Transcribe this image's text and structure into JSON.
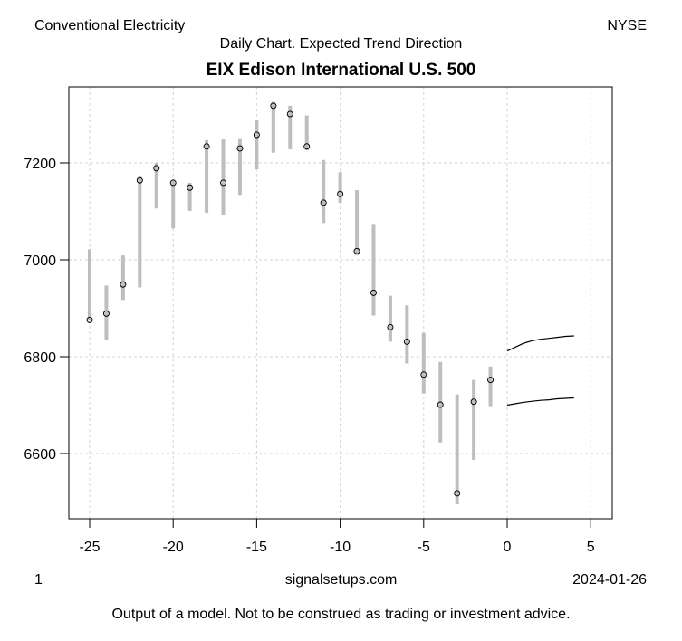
{
  "header": {
    "sector": "Conventional Electricity",
    "exchange": "NYSE",
    "subtitle": "Daily Chart. Expected Trend Direction",
    "title": "EIX Edison International U.S. 500"
  },
  "footer": {
    "page": "1",
    "site": "signalsetups.com",
    "date": "2024-01-26",
    "disclaimer": "Output of a model. Not to be construed as trading or investment advice."
  },
  "chart_data": {
    "type": "range-bar",
    "title": "EIX Edison International U.S. 500",
    "xlabel": "",
    "ylabel": "",
    "xlim": [
      -26.2,
      6.2
    ],
    "ylim": [
      6465,
      7355
    ],
    "grid": true,
    "x_ticks": [
      -25,
      -20,
      -15,
      -10,
      -5,
      0,
      5
    ],
    "x_tick_labels": [
      "-25",
      "-20",
      "-15",
      "-10",
      "-5",
      "0",
      "5"
    ],
    "y_ticks": [
      6600,
      6800,
      7000,
      7200
    ],
    "y_tick_labels": [
      "6600",
      "6800",
      "7000",
      "7200"
    ],
    "colors": {
      "range_bar": "#bebebe",
      "grid": "#d3d3d3",
      "forecast": "#000000",
      "axis": "#000000"
    },
    "bars": [
      {
        "x": -25,
        "high": 7022,
        "low": 6876,
        "close": 6876
      },
      {
        "x": -24,
        "high": 6947,
        "low": 6834,
        "close": 6889
      },
      {
        "x": -23,
        "high": 7009,
        "low": 6917,
        "close": 6949
      },
      {
        "x": -22,
        "high": 7174,
        "low": 6943,
        "close": 7164
      },
      {
        "x": -21,
        "high": 7200,
        "low": 7106,
        "close": 7189
      },
      {
        "x": -20,
        "high": 7163,
        "low": 7065,
        "close": 7159
      },
      {
        "x": -19,
        "high": 7159,
        "low": 7101,
        "close": 7149
      },
      {
        "x": -18,
        "high": 7247,
        "low": 7097,
        "close": 7234
      },
      {
        "x": -17,
        "high": 7249,
        "low": 7093,
        "close": 7159
      },
      {
        "x": -16,
        "high": 7251,
        "low": 7134,
        "close": 7230
      },
      {
        "x": -15,
        "high": 7288,
        "low": 7187,
        "close": 7258
      },
      {
        "x": -14,
        "high": 7326,
        "low": 7221,
        "close": 7318
      },
      {
        "x": -13,
        "high": 7318,
        "low": 7228,
        "close": 7301
      },
      {
        "x": -12,
        "high": 7298,
        "low": 7226,
        "close": 7234
      },
      {
        "x": -11,
        "high": 7206,
        "low": 7076,
        "close": 7118
      },
      {
        "x": -10,
        "high": 7181,
        "low": 7118,
        "close": 7136
      },
      {
        "x": -9,
        "high": 7144,
        "low": 7009,
        "close": 7018
      },
      {
        "x": -8,
        "high": 7074,
        "low": 6885,
        "close": 6932
      },
      {
        "x": -7,
        "high": 6926,
        "low": 6831,
        "close": 6861
      },
      {
        "x": -6,
        "high": 6906,
        "low": 6786,
        "close": 6831
      },
      {
        "x": -5,
        "high": 6849,
        "low": 6724,
        "close": 6763
      },
      {
        "x": -4,
        "high": 6789,
        "low": 6623,
        "close": 6701
      },
      {
        "x": -3,
        "high": 6722,
        "low": 6495,
        "close": 6518
      },
      {
        "x": -2,
        "high": 6752,
        "low": 6587,
        "close": 6707
      },
      {
        "x": -1,
        "high": 6780,
        "low": 6698,
        "close": 6752
      }
    ],
    "forecast": [
      {
        "name": "upper",
        "x": [
          0,
          0.5,
          1,
          1.5,
          2,
          2.5,
          3,
          3.5,
          4
        ],
        "y": [
          6812,
          6820,
          6828,
          6833,
          6836,
          6838,
          6840,
          6842,
          6843
        ]
      },
      {
        "name": "lower",
        "x": [
          0,
          0.5,
          1,
          1.5,
          2,
          2.5,
          3,
          3.5,
          4
        ],
        "y": [
          6700,
          6703,
          6706,
          6708,
          6710,
          6711,
          6713,
          6714,
          6715
        ]
      }
    ]
  }
}
